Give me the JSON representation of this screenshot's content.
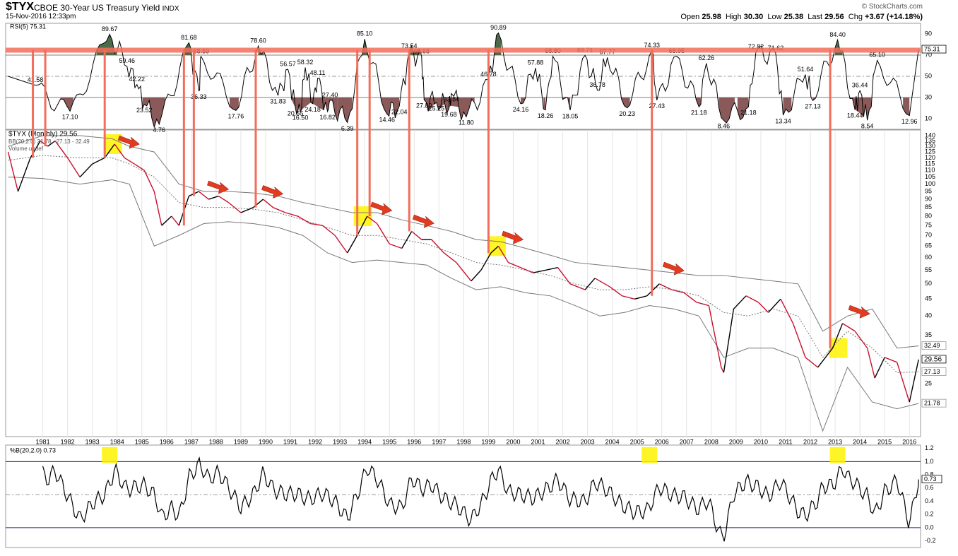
{
  "header": {
    "symbol": "$TYX",
    "name": "CBOE 30-Year US Treasury Yield",
    "exchange": "INDX",
    "date": "15-Nov-2016 12:33pm",
    "brand": "© StockCharts.com",
    "quote": {
      "open_label": "Open",
      "open": "25.98",
      "high_label": "High",
      "high": "30.30",
      "low_label": "Low",
      "low": "25.38",
      "last_label": "Last",
      "last": "29.56",
      "chg_label": "Chg",
      "chg": "+3.67 (+14.18%)"
    }
  },
  "colors": {
    "price_line": "#000000",
    "price_down": "#c8102e",
    "bands": "#777777",
    "threshold_band": "#f26d5b",
    "highlight": "#fff200",
    "arrow": "#e23b20",
    "overbought_fill": "#4d6b4a",
    "oversold_fill": "#8a5a5a"
  },
  "chart_data": [
    {
      "type": "line",
      "panel": "rsi",
      "legend": "RSI(5) 75.31",
      "last_value_label": "75.31",
      "ylim": [
        0,
        100
      ],
      "y_ticks": [
        90,
        70,
        50,
        30,
        10
      ],
      "threshold_band": 75,
      "peak_labels": [
        {
          "year": 1984.2,
          "value": 89.67
        },
        {
          "year": 1987.4,
          "value": 81.68
        },
        {
          "year": 1987.9,
          "value": 68.59
        },
        {
          "year": 1990.2,
          "value": 78.6
        },
        {
          "year": 1991.4,
          "value": 56.57
        },
        {
          "year": 1992.1,
          "value": 58.32
        },
        {
          "year": 1992.6,
          "value": 48.11
        },
        {
          "year": 1994.5,
          "value": 85.1
        },
        {
          "year": 1996.3,
          "value": 73.54
        },
        {
          "year": 1996.8,
          "value": 68.68
        },
        {
          "year": 1999.9,
          "value": 90.89
        },
        {
          "year": 2001.4,
          "value": 57.88
        },
        {
          "year": 2002.1,
          "value": 68.8
        },
        {
          "year": 2003.4,
          "value": 69.71
        },
        {
          "year": 2004.3,
          "value": 67.77
        },
        {
          "year": 2006.1,
          "value": 74.33
        },
        {
          "year": 2007.1,
          "value": 68.95
        },
        {
          "year": 2008.3,
          "value": 62.26
        },
        {
          "year": 2010.3,
          "value": 72.82
        },
        {
          "year": 2011.1,
          "value": 71.62
        },
        {
          "year": 2012.3,
          "value": 51.64
        },
        {
          "year": 2013.6,
          "value": 84.4
        },
        {
          "year": 2015.2,
          "value": 65.1
        },
        {
          "year": 1984.9,
          "value": 59.46
        },
        {
          "year": 1985.3,
          "value": 42.22
        },
        {
          "year": 1999.5,
          "value": 46.78
        },
        {
          "year": 1981.2,
          "value": 41.58
        },
        {
          "year": 1993.1,
          "value": 27.4
        },
        {
          "year": 2003.9,
          "value": 36.78
        },
        {
          "year": 2014.5,
          "value": 36.44
        }
      ],
      "trough_labels": [
        {
          "year": 1982.6,
          "value": 17.1
        },
        {
          "year": 1985.6,
          "value": 23.52
        },
        {
          "year": 1986.2,
          "value": 4.76
        },
        {
          "year": 1987.8,
          "value": 36.33
        },
        {
          "year": 1989.3,
          "value": 17.76
        },
        {
          "year": 1991.0,
          "value": 31.83
        },
        {
          "year": 1991.7,
          "value": 20.55
        },
        {
          "year": 1991.9,
          "value": 16.5
        },
        {
          "year": 1992.4,
          "value": 24.18
        },
        {
          "year": 1993.0,
          "value": 16.82
        },
        {
          "year": 1993.8,
          "value": 6.39
        },
        {
          "year": 1995.4,
          "value": 14.46
        },
        {
          "year": 1995.9,
          "value": 22.04
        },
        {
          "year": 1996.9,
          "value": 27.8
        },
        {
          "year": 1997.4,
          "value": 25.25
        },
        {
          "year": 1997.9,
          "value": 19.68
        },
        {
          "year": 1998.6,
          "value": 11.8
        },
        {
          "year": 1998.0,
          "value": 33.84
        },
        {
          "year": 2000.8,
          "value": 24.16
        },
        {
          "year": 2001.8,
          "value": 18.26
        },
        {
          "year": 2002.8,
          "value": 18.05
        },
        {
          "year": 2005.1,
          "value": 20.23
        },
        {
          "year": 2006.3,
          "value": 27.43
        },
        {
          "year": 2008.0,
          "value": 21.18
        },
        {
          "year": 2009.0,
          "value": 8.46
        },
        {
          "year": 2010.0,
          "value": 21.18
        },
        {
          "year": 2011.4,
          "value": 13.34
        },
        {
          "year": 2012.6,
          "value": 27.13
        },
        {
          "year": 2014.3,
          "value": 18.44
        },
        {
          "year": 2014.8,
          "value": 8.54
        },
        {
          "year": 2016.5,
          "value": 12.96
        }
      ]
    },
    {
      "type": "line",
      "panel": "price",
      "legend": "$TYX (Monthly) 29.56",
      "legend_bb": "BB(20,2.0) 21.78 - 27.13 - 32.49",
      "legend_vol": "Volume undef",
      "scale": "log",
      "ylim": [
        18,
        140
      ],
      "y_ticks": [
        140,
        135,
        130,
        125,
        120,
        115,
        110,
        105,
        100,
        95,
        90,
        85,
        80,
        75,
        70,
        65,
        60,
        55,
        50,
        45,
        40,
        35,
        25
      ],
      "x_ticks": [
        "1981",
        "1982",
        "1983",
        "1984",
        "1985",
        "1986",
        "1987",
        "1988",
        "1989",
        "1990",
        "1991",
        "1992",
        "1993",
        "1994",
        "1995",
        "1996",
        "1997",
        "1998",
        "1999",
        "2000",
        "2001",
        "2002",
        "2003",
        "2004",
        "2005",
        "2006",
        "2007",
        "2008",
        "2009",
        "2010",
        "2011",
        "2012",
        "2013",
        "2014",
        "2015",
        "2016"
      ],
      "right_labels": [
        {
          "text": "32.49",
          "value": 32.49
        },
        {
          "text": "29.56",
          "value": 29.56
        },
        {
          "text": "27.13",
          "value": 27.13
        },
        {
          "text": "21.78",
          "value": 21.78
        }
      ],
      "series": [
        {
          "name": "$TYX",
          "x": [
            1980.1,
            1980.5,
            1981.0,
            1981.4,
            1981.7,
            1982.0,
            1982.5,
            1983.0,
            1983.5,
            1984.0,
            1984.4,
            1984.8,
            1985.2,
            1985.6,
            1986.0,
            1986.3,
            1986.7,
            1987.0,
            1987.4,
            1987.8,
            1988.2,
            1988.6,
            1989.0,
            1989.5,
            1990.0,
            1990.4,
            1990.8,
            1991.3,
            1991.8,
            1992.3,
            1992.8,
            1993.3,
            1993.8,
            1994.2,
            1994.6,
            1995.0,
            1995.5,
            1996.0,
            1996.4,
            1996.8,
            1997.2,
            1997.7,
            1998.2,
            1998.8,
            1999.2,
            1999.6,
            1999.9,
            2000.3,
            2000.8,
            2001.3,
            2001.8,
            2002.3,
            2002.8,
            2003.4,
            2003.8,
            2004.4,
            2004.9,
            2005.4,
            2005.9,
            2006.4,
            2006.9,
            2007.4,
            2007.9,
            2008.4,
            2008.9,
            2009.0,
            2009.4,
            2009.9,
            2010.4,
            2010.8,
            2011.3,
            2011.8,
            2012.3,
            2012.8,
            2013.4,
            2013.8,
            2014.3,
            2014.8,
            2015.1,
            2015.5,
            2016.0,
            2016.5,
            2016.87
          ],
          "values": [
            125,
            95,
            120,
            135,
            130,
            135,
            120,
            105,
            115,
            120,
            132,
            120,
            115,
            110,
            95,
            75,
            80,
            75,
            92,
            95,
            90,
            92,
            88,
            82,
            85,
            90,
            85,
            82,
            80,
            76,
            75,
            70,
            62,
            70,
            80,
            76,
            66,
            64,
            72,
            68,
            68,
            62,
            58,
            51,
            55,
            62,
            65,
            58,
            56,
            54,
            55,
            56,
            50,
            48,
            52,
            49,
            46,
            45,
            46,
            50,
            48,
            47,
            44,
            43,
            28,
            27,
            42,
            46,
            44,
            41,
            45,
            38,
            30,
            28,
            32,
            38,
            36,
            32,
            26,
            30,
            29,
            22,
            29.56
          ]
        },
        {
          "name": "BB upper",
          "x": [
            1980.1,
            1981.5,
            1983.0,
            1984.3,
            1985.0,
            1986.0,
            1987.0,
            1988.0,
            1989.0,
            1990.0,
            1991.0,
            1992.0,
            1993.0,
            1994.0,
            1995.0,
            1996.0,
            1997.0,
            1998.0,
            1999.0,
            2000.0,
            2001.0,
            2002.0,
            2003.0,
            2004.0,
            2005.0,
            2006.0,
            2007.0,
            2008.0,
            2009.0,
            2010.0,
            2011.0,
            2012.0,
            2013.0,
            2014.0,
            2015.0,
            2016.0,
            2016.87
          ],
          "values": [
            130,
            140,
            140,
            137,
            130,
            125,
            100,
            95,
            95,
            94,
            92,
            88,
            85,
            82,
            82,
            78,
            75,
            72,
            68,
            67,
            64,
            61,
            58,
            57,
            56,
            55,
            54,
            53,
            53,
            52,
            51,
            50,
            36,
            40,
            42,
            32,
            32.49
          ]
        },
        {
          "name": "BB middle",
          "x": [
            1980.1,
            1981.5,
            1983.0,
            1984.3,
            1985.0,
            1986.0,
            1987.0,
            1988.0,
            1989.0,
            1990.0,
            1991.0,
            1992.0,
            1993.0,
            1994.0,
            1995.0,
            1996.0,
            1997.0,
            1998.0,
            1999.0,
            2000.0,
            2001.0,
            2002.0,
            2003.0,
            2004.0,
            2005.0,
            2006.0,
            2007.0,
            2008.0,
            2009.0,
            2010.0,
            2011.0,
            2012.0,
            2013.0,
            2014.0,
            2015.0,
            2016.0,
            2016.87
          ],
          "values": [
            118,
            122,
            120,
            120,
            115,
            105,
            88,
            85,
            85,
            84,
            82,
            78,
            74,
            70,
            70,
            68,
            66,
            62,
            58,
            57,
            55,
            53,
            50,
            48,
            48,
            49,
            48,
            46,
            41,
            40,
            42,
            40,
            30,
            36,
            32,
            27,
            27.13
          ]
        },
        {
          "name": "BB lower",
          "x": [
            1980.1,
            1981.5,
            1983.0,
            1984.3,
            1985.0,
            1986.0,
            1987.0,
            1988.0,
            1989.0,
            1990.0,
            1991.0,
            1992.0,
            1993.0,
            1994.0,
            1995.0,
            1996.0,
            1997.0,
            1998.0,
            1999.0,
            2000.0,
            2001.0,
            2002.0,
            2003.0,
            2004.0,
            2005.0,
            2006.0,
            2007.0,
            2008.0,
            2009.0,
            2010.0,
            2011.0,
            2012.0,
            2013.0,
            2014.0,
            2015.0,
            2016.0,
            2016.87
          ],
          "values": [
            105,
            104,
            100,
            103,
            100,
            65,
            70,
            76,
            77,
            76,
            74,
            70,
            62,
            58,
            59,
            58,
            57,
            52,
            48,
            49,
            47,
            46,
            43,
            40,
            41,
            43,
            42,
            40,
            30,
            32,
            32,
            30,
            18,
            28,
            22,
            21,
            21.78
          ]
        }
      ],
      "highlight_years": [
        1984.3,
        1994.4,
        1999.8,
        2013.6
      ],
      "arrow_years": [
        1985.0,
        1988.6,
        1990.8,
        1995.2,
        1996.9,
        2000.5,
        2007.0,
        2014.5
      ]
    },
    {
      "type": "line",
      "panel": "percentb",
      "legend": "%B(20,2.0) 0.73",
      "last_value_label": "0.73",
      "ylim": [
        -0.3,
        1.25
      ],
      "y_ticks": [
        1.2,
        1.0,
        0.8,
        0.6,
        0.4,
        0.2,
        0.0,
        -0.2
      ],
      "y_tick_labels": [
        "1.2",
        "1.0",
        "0.8",
        "0.6",
        "0.4",
        "0.2",
        "0.0",
        "-0.2"
      ],
      "reference_lines": [
        1.0,
        0.5,
        0.0
      ],
      "highlight_years": [
        1984.2,
        2006.0,
        2013.6
      ]
    }
  ],
  "signal_years": [
    1981.1,
    1981.6,
    1984.0,
    1987.2,
    1987.6,
    1990.1,
    1994.2,
    1994.7,
    1996.3,
    1999.5,
    2006.1,
    2013.3
  ]
}
